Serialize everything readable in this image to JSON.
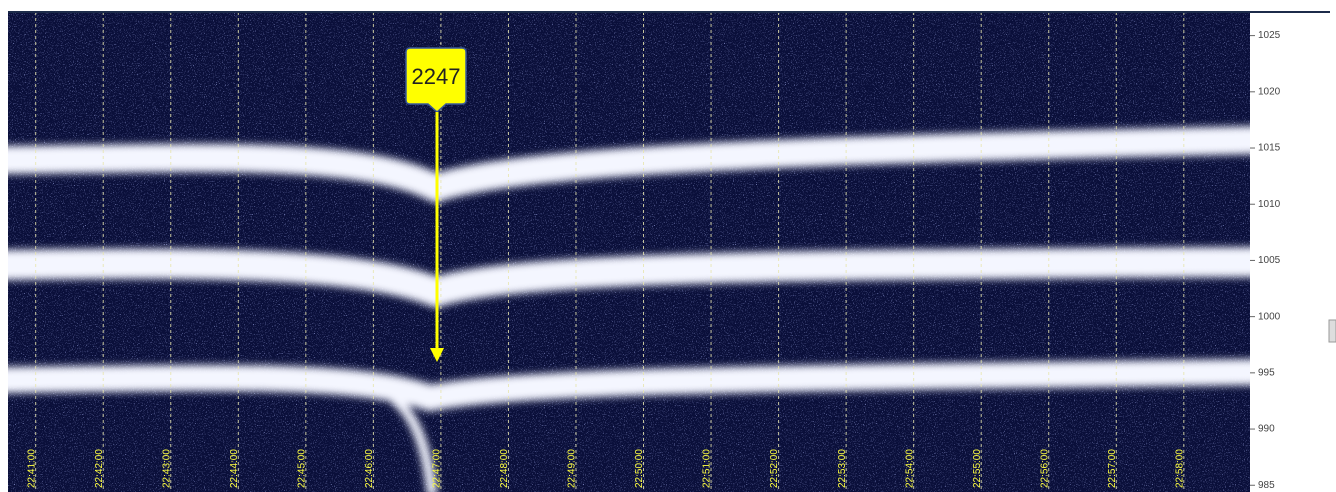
{
  "chart_data": {
    "type": "spectrogram",
    "annotation": "2247",
    "ylim": [
      984.4,
      1027.1
    ],
    "yticks": [
      985,
      990,
      995,
      1000,
      1005,
      1010,
      1015,
      1020,
      1025
    ],
    "xlim": [
      1360.59,
      1378.98
    ],
    "xticks": [
      {
        "value": 1361,
        "label": "22:41:00"
      },
      {
        "value": 1362,
        "label": "22:42:00"
      },
      {
        "value": 1363,
        "label": "22:43:00"
      },
      {
        "value": 1364,
        "label": "22:44:00"
      },
      {
        "value": 1365,
        "label": "22:45:00"
      },
      {
        "value": 1366,
        "label": "22:46:00"
      },
      {
        "value": 1367,
        "label": "22:47:00"
      },
      {
        "value": 1368,
        "label": "22:48:00"
      },
      {
        "value": 1369,
        "label": "22:49:00"
      },
      {
        "value": 1370,
        "label": "22:50:00"
      },
      {
        "value": 1371,
        "label": "22:51:00"
      },
      {
        "value": 1372,
        "label": "22:52:00"
      },
      {
        "value": 1373,
        "label": "22:53:00"
      },
      {
        "value": 1374,
        "label": "22:54:00"
      },
      {
        "value": 1375,
        "label": "22:55:00"
      },
      {
        "value": 1376,
        "label": "22:56:00"
      },
      {
        "value": 1377,
        "label": "22:57:00"
      },
      {
        "value": 1378,
        "label": "22:58:00"
      }
    ],
    "grid": true
  }
}
